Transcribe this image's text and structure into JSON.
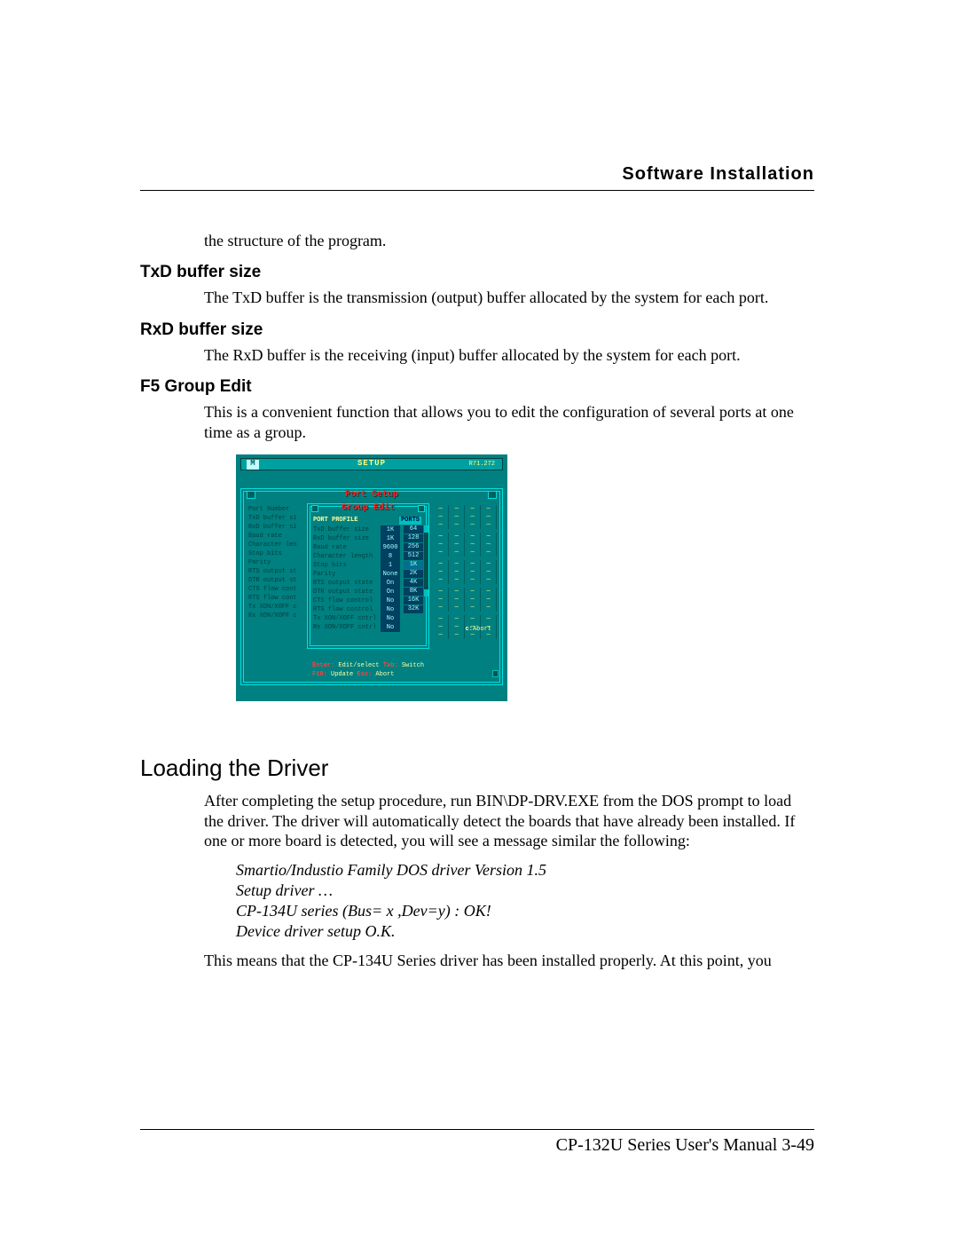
{
  "header": {
    "title": "Software  Installation"
  },
  "intro_fragment": "the structure of the program.",
  "sections": {
    "txd": {
      "heading": "TxD buffer size",
      "text": "The TxD buffer is the transmission (output) buffer allocated by the system for each port."
    },
    "rxd": {
      "heading": "RxD buffer size",
      "text": "The RxD buffer is the receiving (input) buffer allocated by the system for each port."
    },
    "f5": {
      "heading": "F5 Group Edit",
      "text": "This is a convenient function that allows you to edit the configuration of several ports at one time as a group."
    }
  },
  "dos": {
    "colors": {
      "bg": "#008080",
      "panel": "#00a0a0",
      "border": "#00e0e0",
      "dark": "#004040",
      "cell_bg": "#004060",
      "cell_fg": "#a0ffff",
      "title_red": "#ff2020",
      "yellow": "#ffff80"
    },
    "setup_bar": {
      "logo": "M",
      "title": "SETUP",
      "right": "R71.272"
    },
    "port_setup_title": "Port Setup",
    "left_labels": [
      "Port Number",
      "TxD buffer si",
      "RxD buffer si",
      "Baud rate",
      "Character len",
      "Stop bits",
      "Parity",
      "RTS output st",
      "DTR output st",
      "CTS flow cont",
      "RTS flow cont",
      "Tx XON/XOFF c",
      "Rx XON/XOFF c"
    ],
    "group_edit": {
      "title": "Group Edit",
      "pp_header": "PORT PROFILE",
      "ports_header": "PORTS",
      "rows": [
        {
          "lab": "TxD buffer size",
          "val": "1K"
        },
        {
          "lab": "RxD buffer size",
          "val": "1K"
        },
        {
          "lab": "Baud rate",
          "val": "9600"
        },
        {
          "lab": "Character length",
          "val": "8"
        },
        {
          "lab": "Stop bits",
          "val": "1"
        },
        {
          "lab": "Parity",
          "val": "None"
        },
        {
          "lab": "RTS output state",
          "val": "On"
        },
        {
          "lab": "DTR output state",
          "val": "On"
        },
        {
          "lab": "CTS flow control",
          "val": "No"
        },
        {
          "lab": "RTS flow control",
          "val": "No"
        },
        {
          "lab": "Tx XON/XOFF cntrl",
          "val": "No"
        },
        {
          "lab": "Rx XON/XOFF cntrl",
          "val": "No"
        }
      ],
      "ports_col": [
        "64",
        "128",
        "256",
        "512",
        "1K",
        "2K",
        "4K",
        "8K",
        "16K",
        "32K"
      ],
      "ports_hl_index": 4
    },
    "right_dashes": {
      "cols": 4,
      "groups": 5,
      "rows_per_group": 3,
      "glyph": "—"
    },
    "abort": {
      "key": "c:",
      "label": "Abort"
    },
    "hints": {
      "line1": [
        {
          "k": "Enter:",
          "t": " Edit/select "
        },
        {
          "k": "Tab:",
          "t": " Switch"
        }
      ],
      "line2": [
        {
          "k": "F10:",
          "t": " Update "
        },
        {
          "k": "Esc:",
          "t": " Abort"
        }
      ]
    }
  },
  "loading": {
    "heading": "Loading the Driver",
    "p1": "After completing the setup procedure, run BIN\\DP-DRV.EXE from the DOS prompt to load the driver. The driver will automatically detect the boards that have already been installed. If one or more board is detected, you will see a message similar the following:",
    "code": [
      "Smartio/Industio Family DOS driver Version 1.5",
      "Setup driver …",
      "CP-134U series (Bus= x ,Dev=y) : OK!",
      "Device driver setup O.K."
    ],
    "p2": "This means that the CP-134U Series driver has been installed properly. At this point, you"
  },
  "footer": "CP-132U Series User's Manual  3-49"
}
